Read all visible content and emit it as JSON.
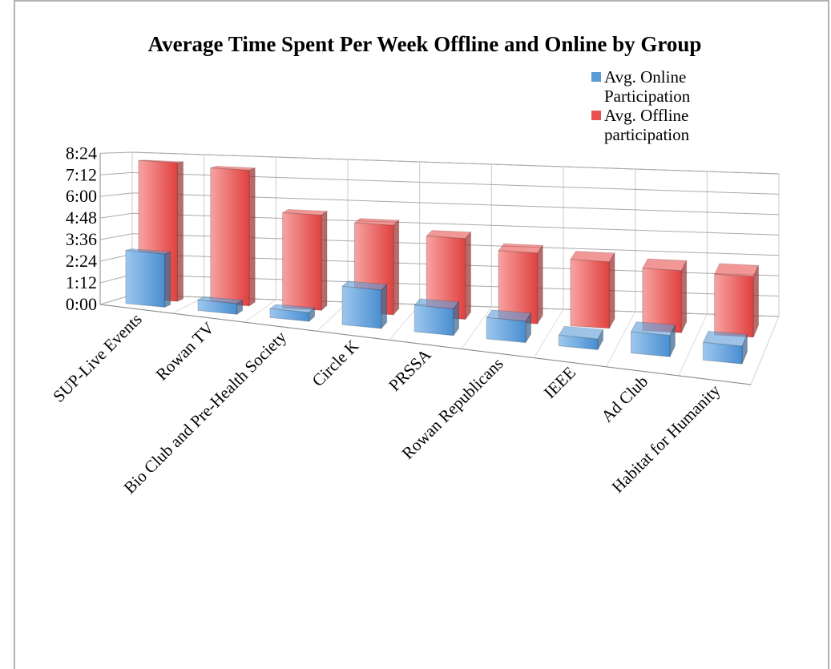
{
  "chart_data": {
    "type": "bar3d",
    "title": "Average Time Spent Per Week Offline and Online by Group",
    "categories": [
      "SUP-Live Events",
      "Rowan TV",
      "Bio Club and Pre-Health Society",
      "Circle K",
      "PRSSA",
      "Rowan Republicans",
      "IEEE",
      "Ad Club",
      "Habitat for Humanity"
    ],
    "series": [
      {
        "name": "Avg. Online Participation",
        "color": "#5b9bd5",
        "values": [
          180,
          36,
          30,
          130,
          90,
          72,
          36,
          72,
          60
        ]
      },
      {
        "name": "Avg. Offline participation",
        "color": "#e8514f",
        "values": [
          480,
          470,
          330,
          310,
          280,
          245,
          230,
          215,
          210
        ]
      }
    ],
    "ylim": [
      0,
      504
    ],
    "yticks": [
      {
        "value": 0,
        "label": "0:00"
      },
      {
        "value": 72,
        "label": "1:12"
      },
      {
        "value": 144,
        "label": "2:24"
      },
      {
        "value": 216,
        "label": "3:36"
      },
      {
        "value": 288,
        "label": "4:48"
      },
      {
        "value": 360,
        "label": "6:00"
      },
      {
        "value": 432,
        "label": "7:12"
      },
      {
        "value": 504,
        "label": "8:24"
      }
    ],
    "grid": true,
    "legend": "top-right"
  }
}
